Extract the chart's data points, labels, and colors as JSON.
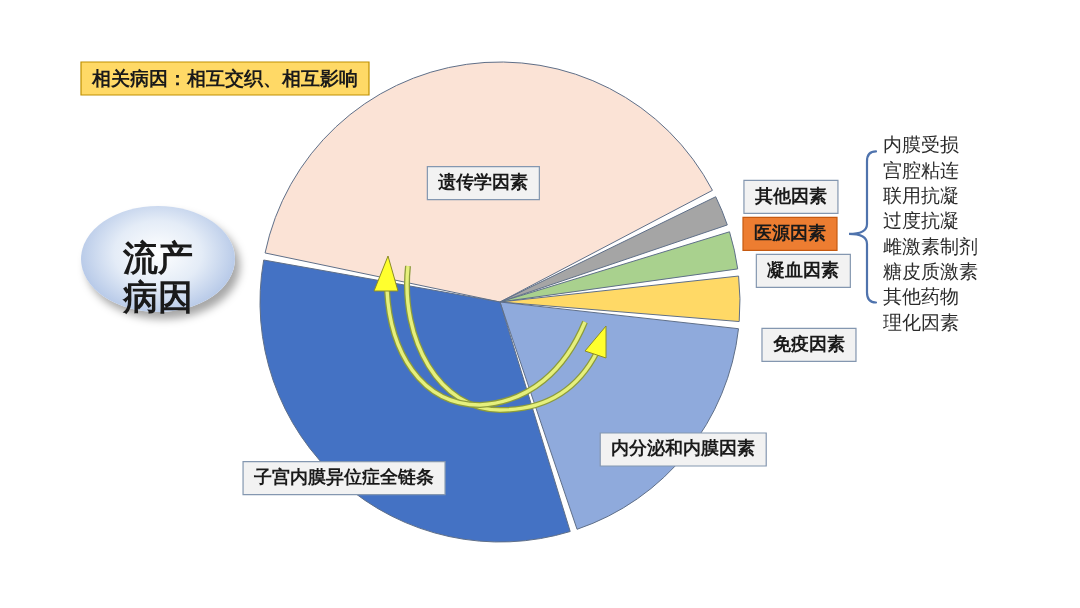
{
  "chart_data": {
    "type": "pie",
    "title": "流产病因",
    "categories": [
      "遗传学因素",
      "其他因素",
      "凝血因素",
      "免疫因素",
      "内分泌和内膜因素",
      "子宫内膜异位症全链条"
    ],
    "values": [
      39.5,
      2.5,
      3,
      3.5,
      18.5,
      33
    ],
    "colors": [
      "#fbe3d6",
      "#a5a5a5",
      "#a9d18e",
      "#ffd966",
      "#8faadc",
      "#4472c4"
    ],
    "annotations": [
      "相关病因：相互交织、相互影响",
      "医源因素",
      "内膜受损",
      "宫腔粘连",
      "联用抗凝",
      "过度抗凝",
      "雌激素制剂",
      "糖皮质激素",
      "其他药物",
      "理化因素"
    ]
  }
}
